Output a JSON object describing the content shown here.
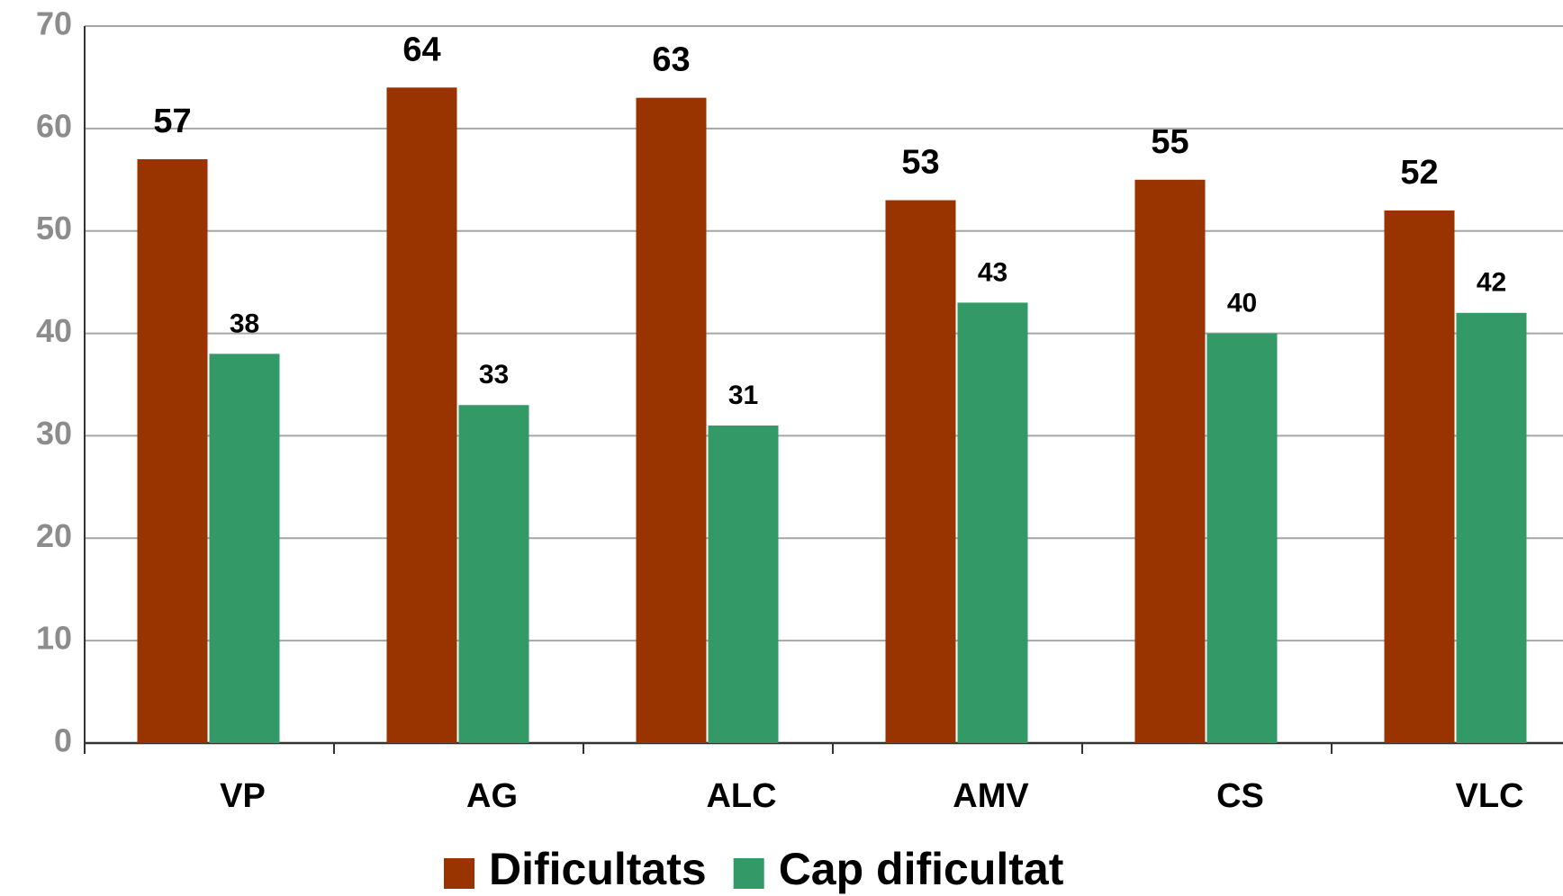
{
  "chart_data": {
    "type": "bar",
    "categories": [
      "VP",
      "AG",
      "ALC",
      "AMV",
      "CS",
      "VLC"
    ],
    "series": [
      {
        "name": "Dificultats",
        "color": "#993300",
        "values": [
          57,
          64,
          63,
          53,
          55,
          52
        ]
      },
      {
        "name": "Cap dificultat",
        "color": "#339966",
        "values": [
          38,
          33,
          31,
          43,
          40,
          42
        ]
      }
    ],
    "ylim": [
      0,
      70
    ],
    "yticks": [
      0,
      10,
      20,
      30,
      40,
      50,
      60,
      70
    ],
    "grid": true,
    "legend": "bottom"
  }
}
